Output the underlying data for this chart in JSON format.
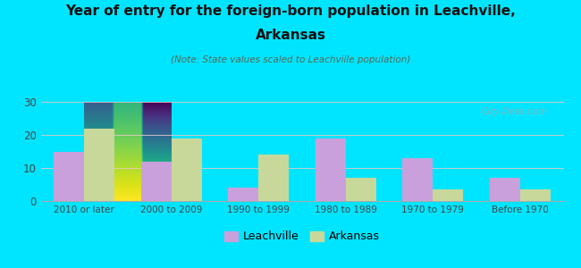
{
  "categories": [
    "2010 or later",
    "2000 to 2009",
    "1990 to 1999",
    "1980 to 1989",
    "1970 to 1979",
    "Before 1970"
  ],
  "leachville": [
    15,
    12,
    4,
    19,
    13,
    7
  ],
  "arkansas": [
    22,
    19,
    14,
    7,
    3.5,
    3.5
  ],
  "leachville_color": "#c9a0dc",
  "arkansas_color": "#c8d89a",
  "title_line1": "Year of entry for the foreign-born population in Leachville,",
  "title_line2": "Arkansas",
  "subtitle": "(Note: State values scaled to Leachville population)",
  "ylim": [
    0,
    30
  ],
  "yticks": [
    0,
    10,
    20,
    30
  ],
  "legend_leachville": "Leachville",
  "legend_arkansas": "Arkansas",
  "background_color": "#00e5ff",
  "plot_bg_top": "#d8ecc8",
  "plot_bg_bottom": "#ffffff",
  "watermark": "City-Data.com",
  "bar_width": 0.35,
  "title_color": "#111111",
  "subtitle_color": "#556655",
  "tick_color": "#444444",
  "grid_color": "#dddddd"
}
